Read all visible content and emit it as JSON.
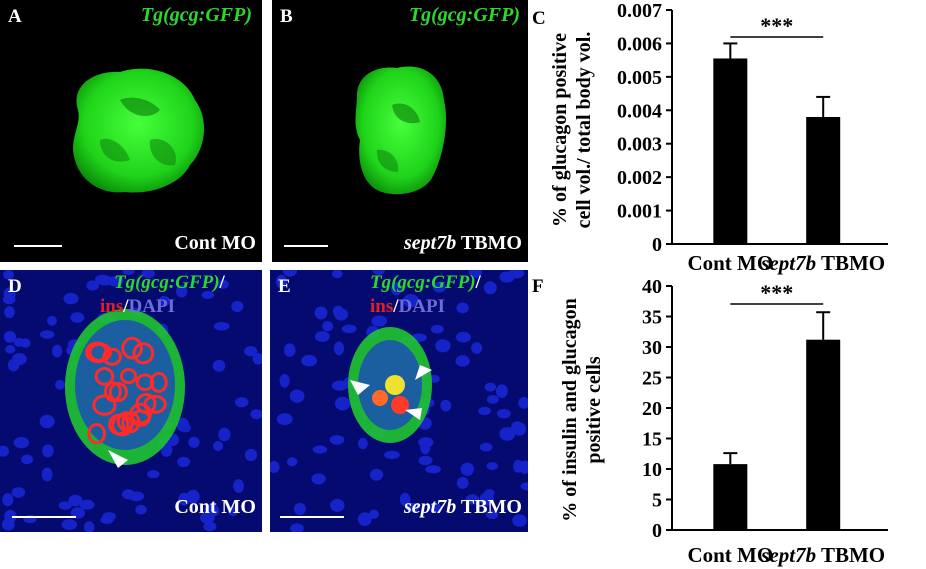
{
  "panels": {
    "A": {
      "label": "A",
      "marker": "Tg(gcg:GFP)",
      "condition": "Cont MO"
    },
    "B": {
      "label": "B",
      "marker": "Tg(gcg:GFP)",
      "condition_gene": "sept7b",
      "condition_rest": " TBMO"
    },
    "C": {
      "label": "C"
    },
    "D": {
      "label": "D",
      "marker": "Tg(gcg:GFP)",
      "slash": "/",
      "ins": "ins",
      "slash2": "/",
      "dapi": "DAPI",
      "condition": "Cont MO"
    },
    "E": {
      "label": "E",
      "marker": "Tg(gcg:GFP)",
      "slash": "/",
      "ins": "ins",
      "slash2": "/",
      "dapi": "DAPI",
      "condition_gene": "sept7b",
      "condition_rest": " TBMO"
    },
    "F": {
      "label": "F"
    }
  },
  "colors": {
    "gfp": "#2dd82d",
    "ins": "#e32020",
    "dapi": "#6d6dd9",
    "bar": "#000000"
  },
  "chart_data": [
    {
      "type": "bar",
      "panel": "C",
      "categories": [
        "Cont MO",
        "sept7b TBMO"
      ],
      "category_gene": [
        "",
        "sept7b"
      ],
      "category_rest": [
        "Cont MO",
        " TBMO"
      ],
      "values": [
        0.00555,
        0.0038
      ],
      "errors": [
        0.00045,
        0.0006
      ],
      "ylabel_line1": "% of glucagon positive",
      "ylabel_line2": "cell vol./ total body vol.",
      "ylim": [
        0,
        0.007
      ],
      "yticks": [
        "0",
        "0.001",
        "0.002",
        "0.003",
        "0.004",
        "0.005",
        "0.006",
        "0.007"
      ],
      "ytick_values": [
        0,
        0.001,
        0.002,
        0.003,
        0.004,
        0.005,
        0.006,
        0.007
      ],
      "significance": "***"
    },
    {
      "type": "bar",
      "panel": "F",
      "categories": [
        "Cont MO",
        "sept7b TBMO"
      ],
      "category_gene": [
        "",
        "sept7b"
      ],
      "category_rest": [
        "Cont MO",
        " TBMO"
      ],
      "values": [
        10.8,
        31.2
      ],
      "errors": [
        1.8,
        4.5
      ],
      "ylabel_line1": "% of insulin and glucagon",
      "ylabel_line2": "positive cells",
      "ylim": [
        0,
        40
      ],
      "yticks": [
        "0",
        "5",
        "10",
        "15",
        "20",
        "25",
        "30",
        "35",
        "40"
      ],
      "ytick_values": [
        0,
        5,
        10,
        15,
        20,
        25,
        30,
        35,
        40
      ],
      "significance": "***"
    }
  ]
}
